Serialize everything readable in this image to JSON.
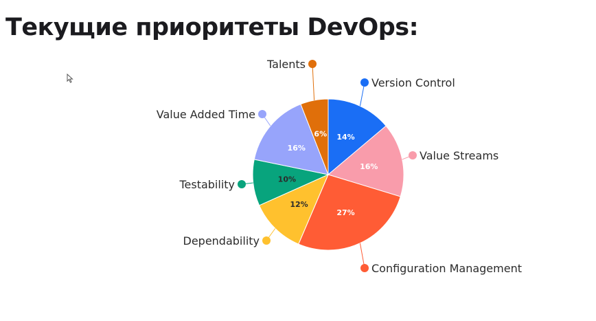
{
  "slide": {
    "title": "Текущие приоритеты DevOps:"
  },
  "chart_data": {
    "type": "pie",
    "title": "",
    "slices": [
      {
        "label": "Version Control",
        "value": 14,
        "value_label": "14%",
        "color": "#1a6ef5",
        "text_color": "#ffffff"
      },
      {
        "label": "Value Streams",
        "value": 16,
        "value_label": "16%",
        "color": "#f99cab",
        "text_color": "#ffffff"
      },
      {
        "label": "Configuration Management",
        "value": 27,
        "value_label": "27%",
        "color": "#ff5c35",
        "text_color": "#ffffff"
      },
      {
        "label": "Dependability",
        "value": 12,
        "value_label": "12%",
        "color": "#ffc12e",
        "text_color": "#2b2b2b"
      },
      {
        "label": "Testability",
        "value": 10,
        "value_label": "10%",
        "color": "#08a47d",
        "text_color": "#2b2b2b"
      },
      {
        "label": "Value Added Time",
        "value": 16,
        "value_label": "16%",
        "color": "#97a4fb",
        "text_color": "#ffffff"
      },
      {
        "label": "Talents",
        "value": 6,
        "value_label": "6%",
        "color": "#e06f0a",
        "text_color": "#ffffff"
      }
    ],
    "start_angle": "12 o'clock",
    "direction": "clockwise",
    "legend": "callouts"
  }
}
